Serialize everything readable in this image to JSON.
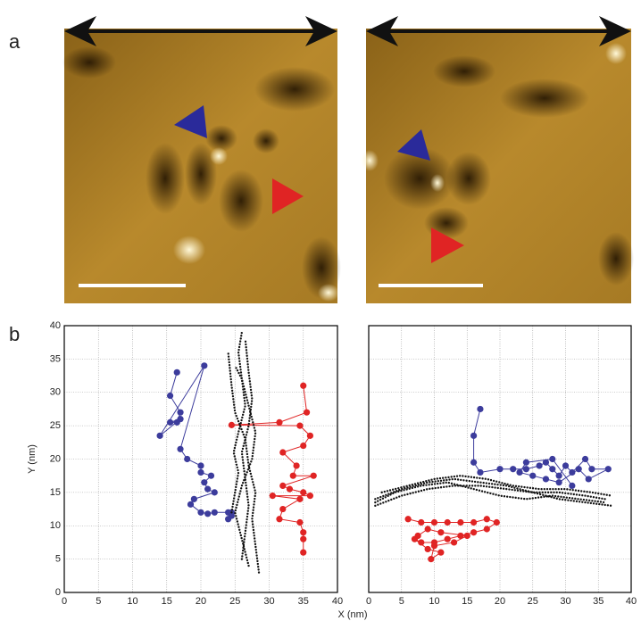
{
  "panel_labels": [
    "a",
    "b"
  ],
  "chart_data": [
    {
      "type": "line",
      "xlabel": "X (nm)",
      "ylabel": "Y (nm)",
      "xlim": [
        0,
        40
      ],
      "ylim": [
        0,
        40
      ],
      "xticks": [
        0,
        5,
        10,
        15,
        20,
        25,
        30,
        35,
        40
      ],
      "yticks": [
        0,
        5,
        10,
        15,
        20,
        25,
        30,
        35,
        40
      ],
      "ytick_labels": true,
      "grid": true,
      "series": [
        {
          "color": "#3c3c9c",
          "line_style": "solid",
          "markers": true,
          "x": [
            16.5,
            15.5,
            17,
            16.5,
            15.5,
            17,
            14,
            20.5,
            17,
            18,
            20,
            20,
            21.5,
            20.5,
            21,
            22,
            19,
            18.5,
            20,
            21,
            22,
            24,
            24.5,
            24.5,
            24
          ],
          "values": [
            33,
            29.5,
            27,
            25.5,
            25.5,
            26,
            23.5,
            34,
            21.5,
            20,
            19,
            18,
            17.5,
            16.5,
            15.5,
            15,
            14,
            13.2,
            12,
            11.8,
            12,
            12,
            11.5,
            12,
            11
          ]
        },
        {
          "color": "#e02424",
          "line_style": "solid",
          "markers": true,
          "x": [
            35,
            35.5,
            31.5,
            24.5,
            34.5,
            36,
            35,
            32,
            34,
            33.5,
            36.5,
            32,
            33,
            35,
            36,
            30.5,
            34.5,
            32,
            31.5,
            34.5,
            35,
            35,
            35
          ],
          "values": [
            31,
            27,
            25.5,
            25.1,
            25,
            23.5,
            22,
            21,
            19,
            17.5,
            17.5,
            16,
            15.5,
            15,
            14.5,
            14.5,
            14,
            12.5,
            11,
            10.5,
            9,
            8,
            6
          ]
        },
        {
          "color": "#111111",
          "line_style": "dotted",
          "markers": false,
          "x": [
            24.5,
            25,
            25.5,
            24.8,
            25.5,
            26.5,
            26,
            25.5,
            26
          ],
          "values": [
            12,
            15,
            18,
            21,
            24,
            28,
            32,
            36,
            39
          ]
        },
        {
          "color": "#111111",
          "line_style": "dotted",
          "markers": false,
          "x": [
            26,
            26.5,
            27,
            26.5,
            26,
            27,
            27.5,
            27,
            26.5
          ],
          "values": [
            5,
            9,
            13,
            17,
            21,
            25,
            29,
            33,
            38
          ]
        },
        {
          "color": "#111111",
          "line_style": "dotted",
          "markers": false,
          "x": [
            28.5,
            28,
            27.5,
            28,
            27,
            26.5,
            25,
            24.5,
            24
          ],
          "values": [
            3,
            7,
            11,
            15,
            19,
            23,
            27,
            31,
            36
          ]
        },
        {
          "color": "#111111",
          "line_style": "dotted",
          "markers": false,
          "x": [
            27,
            26,
            25,
            26,
            27.5,
            28,
            27,
            26,
            25
          ],
          "values": [
            4,
            8,
            12,
            16,
            20,
            24,
            28,
            32,
            34
          ]
        }
      ]
    },
    {
      "type": "line",
      "xlim": [
        0,
        40
      ],
      "ylim": [
        0,
        40
      ],
      "xticks": [
        0,
        5,
        10,
        15,
        20,
        25,
        30,
        35,
        40
      ],
      "yticks": [
        0,
        5,
        10,
        15,
        20,
        25,
        30,
        35,
        40
      ],
      "ytick_labels": false,
      "grid": true,
      "series": [
        {
          "color": "#3c3c9c",
          "line_style": "solid",
          "markers": true,
          "x": [
            17,
            16,
            16,
            17,
            20,
            22,
            24,
            26,
            27,
            28,
            29,
            30,
            31,
            33,
            34,
            36.5,
            33.5,
            32,
            29,
            27,
            25,
            23,
            24,
            28,
            31
          ],
          "values": [
            27.5,
            23.5,
            19.5,
            18,
            18.5,
            18.5,
            18.5,
            19,
            19.5,
            18.5,
            17.5,
            19,
            18,
            20,
            18.5,
            18.5,
            17,
            18.5,
            16.5,
            17,
            17.5,
            18,
            19.5,
            20,
            16
          ]
        },
        {
          "color": "#e02424",
          "line_style": "solid",
          "markers": true,
          "x": [
            6,
            8,
            10,
            12,
            14,
            16,
            18,
            19.5,
            18,
            16,
            14,
            12,
            10,
            8,
            7,
            9,
            11,
            9.5,
            10,
            13,
            15,
            11,
            9,
            7.5
          ],
          "values": [
            11,
            10.5,
            10.5,
            10.5,
            10.5,
            10.5,
            11,
            10.5,
            9.5,
            9,
            8.5,
            8,
            7.5,
            7.5,
            8,
            6.5,
            6,
            5,
            7,
            7.5,
            8.5,
            9,
            9.5,
            8.5
          ]
        },
        {
          "color": "#111111",
          "line_style": "dotted",
          "markers": false,
          "x": [
            1,
            5,
            9,
            13,
            17,
            21,
            25,
            29,
            33,
            37
          ],
          "values": [
            13,
            14.5,
            15.5,
            16,
            16,
            15.5,
            15,
            14,
            13.5,
            13
          ]
        },
        {
          "color": "#111111",
          "line_style": "dotted",
          "markers": false,
          "x": [
            1,
            5,
            9,
            13,
            17,
            21,
            25,
            29,
            33,
            36
          ],
          "values": [
            14,
            15.5,
            16.5,
            17,
            16.5,
            16,
            15,
            15,
            14.5,
            14
          ]
        },
        {
          "color": "#111111",
          "line_style": "dotted",
          "markers": false,
          "x": [
            2,
            6,
            10,
            14,
            18,
            22,
            26,
            30,
            34,
            37
          ],
          "values": [
            15,
            16,
            17,
            17.5,
            17,
            16,
            15.5,
            15.5,
            15,
            14.5
          ]
        },
        {
          "color": "#111111",
          "line_style": "dotted",
          "markers": false,
          "x": [
            1,
            4,
            8,
            12,
            16,
            20,
            24,
            28,
            32,
            36
          ],
          "values": [
            13.5,
            15,
            16,
            16.5,
            15.5,
            14.5,
            14,
            14.5,
            14,
            13.5
          ]
        }
      ]
    }
  ]
}
